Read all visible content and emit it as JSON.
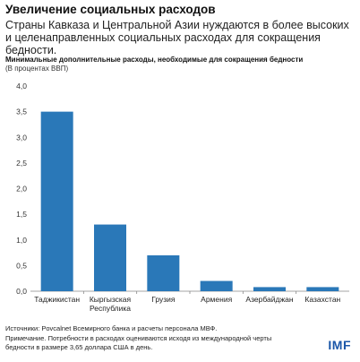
{
  "header": {
    "title": "Увеличение социальных расходов",
    "subtitle": "Страны Кавказа и Центральной Азии нуждаются в более высоких и целенаправленных социальных расходах для сокращения бедности.",
    "chart_subtitle": "Минимальные дополнительные расходы, необходимые для сокращения бедности",
    "unit": "(В процентах ВВП)"
  },
  "chart_data": {
    "type": "bar",
    "categories": [
      "Таджикистан",
      "Кыргызская Республика",
      "Грузия",
      "Армения",
      "Азербайджан",
      "Казахстан"
    ],
    "category_lines": [
      [
        "Таджикистан"
      ],
      [
        "Кыргызская",
        "Республика"
      ],
      [
        "Грузия"
      ],
      [
        "Армения"
      ],
      [
        "Азербайджан"
      ],
      [
        "Казахстан"
      ]
    ],
    "values": [
      3.5,
      1.3,
      0.7,
      0.2,
      0.08,
      0.08
    ],
    "ylim": [
      0,
      4
    ],
    "yticks": [
      "0,0",
      "0,5",
      "1,0",
      "1,5",
      "2,0",
      "2,5",
      "3,0",
      "3,5",
      "4,0"
    ],
    "grid": false,
    "bar_color": "#2a78b8"
  },
  "footer": {
    "sources": "Источники: Povcalnet Всемирного банка и расчеты персонала МВФ.",
    "note_line1": "Примечание. Потребности в расходах оцениваются исходя из международной черты",
    "note_line2": "бедности в размере 3,65 доллара США в день."
  },
  "logo": "IMF"
}
